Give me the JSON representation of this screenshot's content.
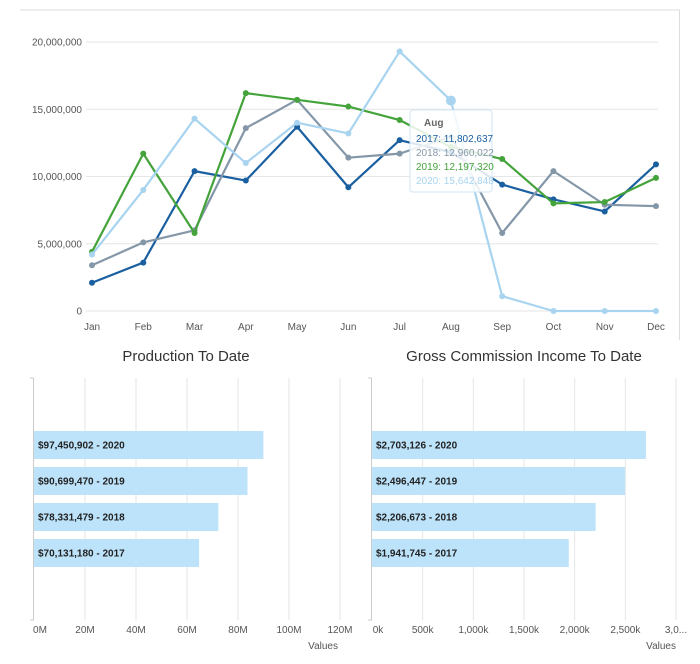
{
  "colors": {
    "s2017": "#1a5fa0",
    "s2018": "#8497a8",
    "s2019": "#44a33a",
    "s2020": "#a8d4f0",
    "bar": "#bde3fb"
  },
  "chart_data": [
    {
      "type": "line",
      "categories": [
        "Jan",
        "Feb",
        "Mar",
        "Apr",
        "May",
        "Jun",
        "Jul",
        "Aug",
        "Sep",
        "Oct",
        "Nov",
        "Dec"
      ],
      "ylim": [
        0,
        20000000
      ],
      "yticks": [
        "0",
        "5,000,000",
        "10,000,000",
        "15,000,000",
        "20,000,000"
      ],
      "grid": true,
      "series": [
        {
          "name": "2017",
          "values": [
            2100000,
            3600000,
            10400000,
            9700000,
            13700000,
            9200000,
            12700000,
            11802637,
            9400000,
            8300000,
            7400000,
            10900000
          ]
        },
        {
          "name": "2018",
          "values": [
            3400000,
            5100000,
            6000000,
            13600000,
            15700000,
            11400000,
            11700000,
            12960022,
            5800000,
            10400000,
            7900000,
            7800000
          ]
        },
        {
          "name": "2019",
          "values": [
            4400000,
            11700000,
            5800000,
            16200000,
            15700000,
            15200000,
            14200000,
            12197320,
            11300000,
            8000000,
            8100000,
            9900000
          ]
        },
        {
          "name": "2020",
          "values": [
            4200000,
            9000000,
            14300000,
            11000000,
            14000000,
            13200000,
            19300000,
            15642848,
            1100000,
            0,
            0,
            0
          ]
        }
      ],
      "tooltip": {
        "title": "Aug",
        "lines": [
          "2017: 11,802,637",
          "2018: 12,960,022",
          "2019: 12,197,320",
          "2020: 15,642,848"
        ]
      }
    },
    {
      "type": "bar",
      "orientation": "horizontal",
      "title": "Production To Date",
      "xlabel": "Values",
      "xlim": [
        0,
        130000000
      ],
      "xticks": [
        "0M",
        "20M",
        "40M",
        "60M",
        "80M",
        "100M",
        "120M"
      ],
      "categories": [
        "$97,450,902 - 2020",
        "$90,699,470 - 2019",
        "$78,331,479 - 2018",
        "$70,131,180 - 2017"
      ],
      "values": [
        97450902,
        90699470,
        78331479,
        70131180
      ]
    },
    {
      "type": "bar",
      "orientation": "horizontal",
      "title": "Gross Commission Income To Date",
      "xlabel": "Values",
      "xlim": [
        0,
        3000000
      ],
      "xticks": [
        "0k",
        "500k",
        "1,000k",
        "1,500k",
        "2,000k",
        "2,500k",
        "3,0..."
      ],
      "categories": [
        "$2,703,126 - 2020",
        "$2,496,447 - 2019",
        "$2,206,673 - 2018",
        "$1,941,745 - 2017"
      ],
      "values": [
        2703126,
        2496447,
        2206673,
        1941745
      ]
    }
  ]
}
